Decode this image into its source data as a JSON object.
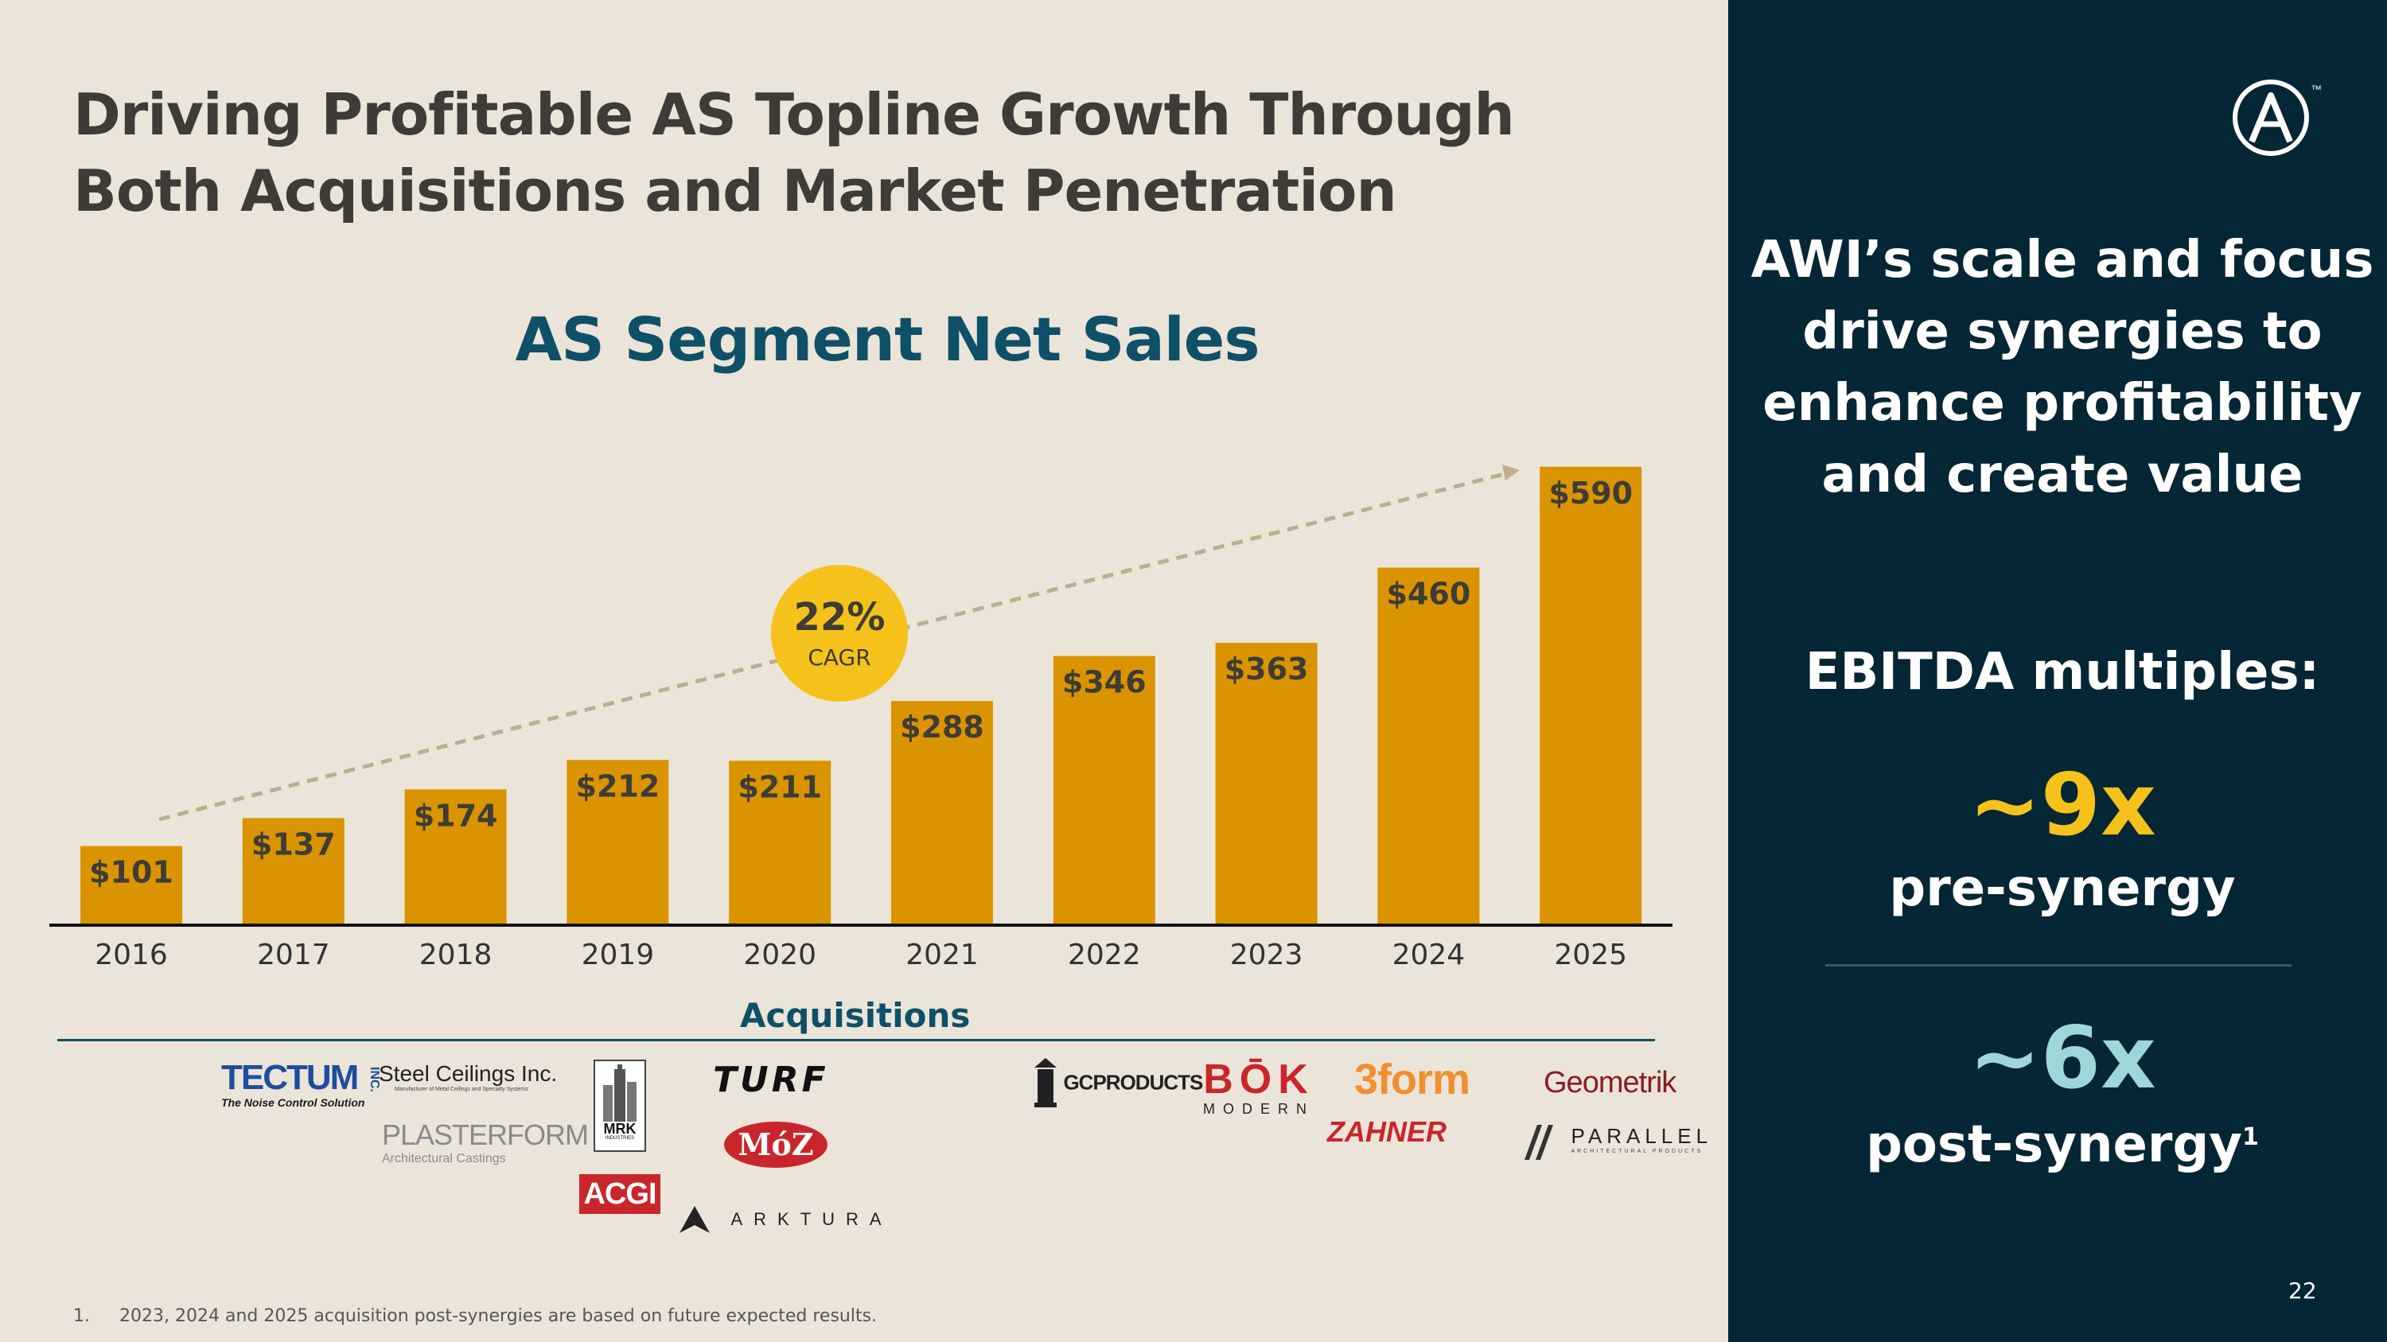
{
  "slide": {
    "title_lines": [
      "Driving Profitable AS Topline Growth Through",
      "Both Acquisitions and Market Penetration"
    ],
    "page_number": "22"
  },
  "chart_data": {
    "type": "bar",
    "title": "AS Segment Net Sales",
    "categories": [
      "2016",
      "2017",
      "2018",
      "2019",
      "2020",
      "2021",
      "2022",
      "2023",
      "2024",
      "2025"
    ],
    "values": [
      101,
      137,
      174,
      212,
      211,
      288,
      346,
      363,
      460,
      590
    ],
    "value_labels": [
      "$101",
      "$137",
      "$174",
      "$212",
      "$211",
      "$288",
      "$346",
      "$363",
      "$460",
      "$590"
    ],
    "ylim": [
      0,
      600
    ],
    "xlabel": "",
    "ylabel": "",
    "grid": false,
    "bar_color": "#d99400",
    "annotation": {
      "value": "22%",
      "label": "CAGR",
      "color": "#f5c21b"
    }
  },
  "acquisitions": {
    "title": "Acquisitions",
    "logos": {
      "tectum": "TECTUM",
      "tectum_inc": "INC.",
      "tectum_tagline": "The Noise Control Solution",
      "steel_ceilings": "Steel Ceilings Inc.",
      "steel_ceilings_tagline": "Manufacturer of Metal Ceilings and Specialty Systems",
      "plasterform": "PLASTERFORM",
      "plasterform_tagline": "Architectural Castings",
      "mrk": "MRK",
      "mrk_sub": "INDUSTRIES",
      "acgi": "ACGI",
      "turf": "TURF",
      "moz": "MóZ",
      "arktura": "ARKTURA",
      "gcproducts": "GCPRODUCTS",
      "bok": "BŌK",
      "bok_sub": "MODERN",
      "3form": "3form",
      "zahner": "ZAHNER",
      "geometrik": "Geometrik",
      "parallel": "PARALLEL",
      "parallel_sub": "ARCHITECTURAL PRODUCTS"
    }
  },
  "footnote": {
    "number": "1.",
    "text": "2023, 2024 and 2025 acquisition post-synergies are based on future expected results."
  },
  "sidebar": {
    "headline_lines": [
      "AWI’s scale and focus",
      "drive synergies to",
      "enhance profitability",
      "and create value"
    ],
    "ebitda_label": "EBITDA multiples:",
    "pre_multiple": "~9x",
    "pre_label": "pre-synergy",
    "post_multiple": "~6x",
    "post_label": "post-synergy",
    "post_footnote": "1"
  },
  "colors": {
    "panel": "#052635",
    "accent_yellow": "#f5c21b",
    "accent_teal": "#9fd6d8",
    "bar": "#d99400",
    "title_blue": "#0e5068"
  }
}
